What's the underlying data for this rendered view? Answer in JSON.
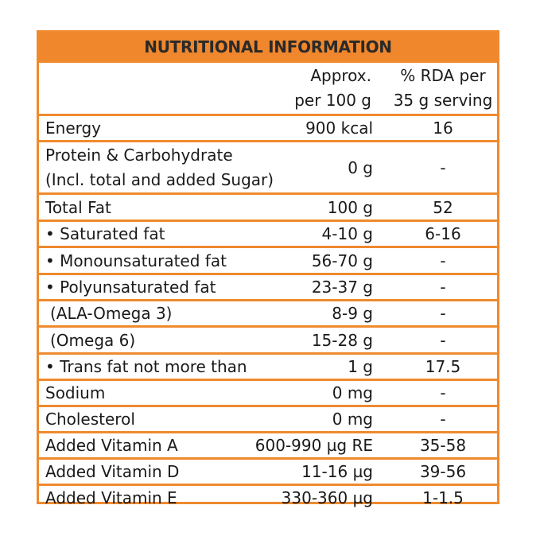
{
  "title": "NUTRITIONAL INFORMATION",
  "header": {
    "col2_line1": "Approx.",
    "col2_line2": "per 100 g",
    "col3_line1": "% RDA per",
    "col3_line2": "35 g serving"
  },
  "rows": [
    {
      "name": "Energy",
      "value": "900 kcal",
      "rda": "16"
    },
    {
      "name_line1": "Protein & Carbohydrate",
      "name_line2": "(Incl. total and added Sugar)",
      "value": "0 g",
      "rda": "-"
    },
    {
      "name": "Total Fat",
      "value": "100 g",
      "rda": "52"
    },
    {
      "name": "• Saturated fat",
      "value": "4-10 g",
      "rda": "6-16"
    },
    {
      "name": "• Monounsaturated fat",
      "value": "56-70 g",
      "rda": "-"
    },
    {
      "name": "• Polyunsaturated fat",
      "value": "23-37 g",
      "rda": "-"
    },
    {
      "name": "(ALA-Omega 3)",
      "value": "8-9 g",
      "rda": "-"
    },
    {
      "name": "(Omega 6)",
      "value": "15-28 g",
      "rda": "-"
    },
    {
      "name": "• Trans fat not more than",
      "value": "1 g",
      "rda": "17.5"
    },
    {
      "name": "Sodium",
      "value": "0 mg",
      "rda": "-"
    },
    {
      "name": "Cholesterol",
      "value": "0 mg",
      "rda": "-"
    },
    {
      "name": "Added Vitamin A",
      "value": "600-990 µg RE",
      "rda": "35-58"
    },
    {
      "name": "Added Vitamin D",
      "value": "11-16 µg",
      "rda": "39-56"
    },
    {
      "name": "Added Vitamin E",
      "value": "330-360 µg",
      "rda": "1-1.5"
    }
  ],
  "colors": {
    "accent": "#f0872c",
    "text": "#1a1a1a"
  }
}
